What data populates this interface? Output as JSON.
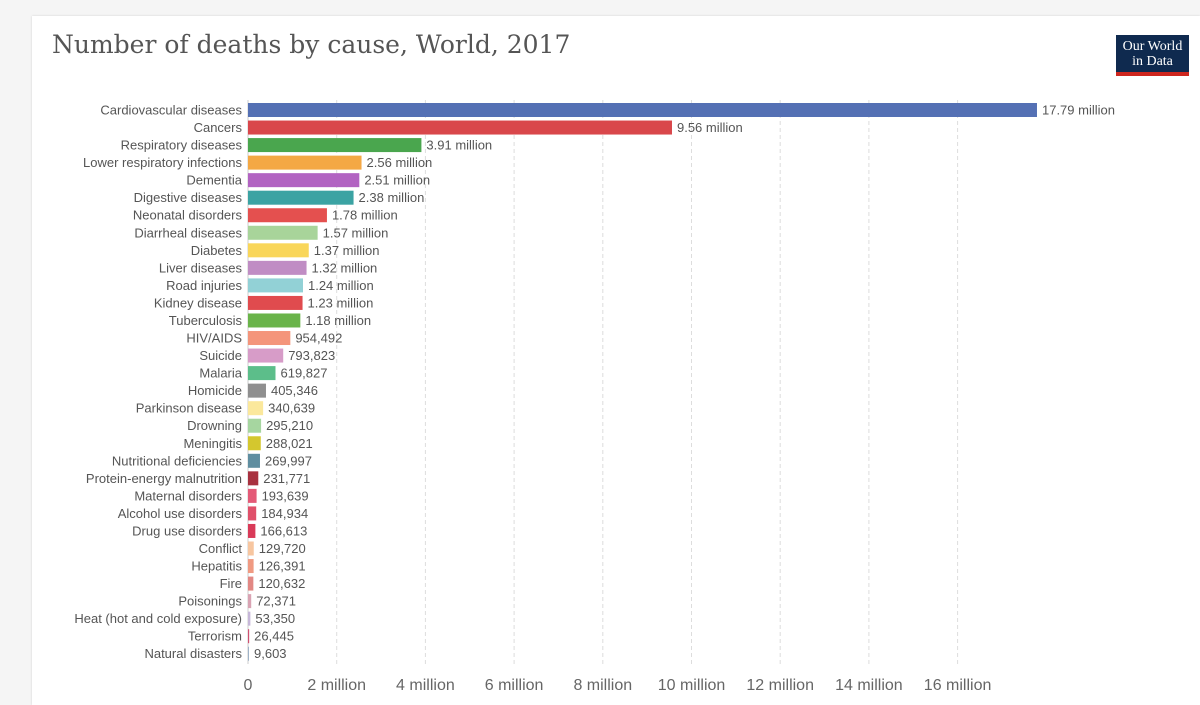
{
  "header": {
    "title": "Number of deaths by cause, World, 2017",
    "logo_line1": "Our World",
    "logo_line2": "in Data"
  },
  "colors": {
    "logo_bg": "#0f2a4f",
    "logo_accent": "#ce261e"
  },
  "chart_data": {
    "type": "bar",
    "orientation": "horizontal",
    "title": "Number of deaths by cause, World, 2017",
    "xlim": [
      0,
      17790000
    ],
    "grid": "vertical dashed",
    "ticks": [
      {
        "value": 0,
        "label": "0"
      },
      {
        "value": 2000000,
        "label": "2 million"
      },
      {
        "value": 4000000,
        "label": "4 million"
      },
      {
        "value": 6000000,
        "label": "6 million"
      },
      {
        "value": 8000000,
        "label": "8 million"
      },
      {
        "value": 10000000,
        "label": "10 million"
      },
      {
        "value": 12000000,
        "label": "12 million"
      },
      {
        "value": 14000000,
        "label": "14 million"
      },
      {
        "value": 16000000,
        "label": "16 million"
      }
    ],
    "bars": [
      {
        "category": "Cardiovascular diseases",
        "value": 17790000,
        "label": "17.79 million",
        "color": "#5470b4"
      },
      {
        "category": "Cancers",
        "value": 9560000,
        "label": "9.56 million",
        "color": "#d9474b"
      },
      {
        "category": "Respiratory diseases",
        "value": 3910000,
        "label": "3.91 million",
        "color": "#4aa64e"
      },
      {
        "category": "Lower respiratory infections",
        "value": 2560000,
        "label": "2.56 million",
        "color": "#f4a844"
      },
      {
        "category": "Dementia",
        "value": 2510000,
        "label": "2.51 million",
        "color": "#b263c2"
      },
      {
        "category": "Digestive diseases",
        "value": 2380000,
        "label": "2.38 million",
        "color": "#3ba3a3"
      },
      {
        "category": "Neonatal disorders",
        "value": 1780000,
        "label": "1.78 million",
        "color": "#e4504f"
      },
      {
        "category": "Diarrheal diseases",
        "value": 1570000,
        "label": "1.57 million",
        "color": "#a8d49a"
      },
      {
        "category": "Diabetes",
        "value": 1370000,
        "label": "1.37 million",
        "color": "#f9d65a"
      },
      {
        "category": "Liver diseases",
        "value": 1320000,
        "label": "1.32 million",
        "color": "#c08dc4"
      },
      {
        "category": "Road injuries",
        "value": 1240000,
        "label": "1.24 million",
        "color": "#92d1d6"
      },
      {
        "category": "Kidney disease",
        "value": 1230000,
        "label": "1.23 million",
        "color": "#e04b4e"
      },
      {
        "category": "Tuberculosis",
        "value": 1180000,
        "label": "1.18 million",
        "color": "#6ab44a"
      },
      {
        "category": "HIV/AIDS",
        "value": 954492,
        "label": "954,492",
        "color": "#f4957b"
      },
      {
        "category": "Suicide",
        "value": 793823,
        "label": "793,823",
        "color": "#d79cc8"
      },
      {
        "category": "Malaria",
        "value": 619827,
        "label": "619,827",
        "color": "#5cbe8a"
      },
      {
        "category": "Homicide",
        "value": 405346,
        "label": "405,346",
        "color": "#8f8f8f"
      },
      {
        "category": "Parkinson disease",
        "value": 340639,
        "label": "340,639",
        "color": "#fbe89c"
      },
      {
        "category": "Drowning",
        "value": 295210,
        "label": "295,210",
        "color": "#a6d6a0"
      },
      {
        "category": "Meningitis",
        "value": 288021,
        "label": "288,021",
        "color": "#d4c72e"
      },
      {
        "category": "Nutritional deficiencies",
        "value": 269997,
        "label": "269,997",
        "color": "#5f8ea0"
      },
      {
        "category": "Protein-energy malnutrition",
        "value": 231771,
        "label": "231,771",
        "color": "#a8313f"
      },
      {
        "category": "Maternal disorders",
        "value": 193639,
        "label": "193,639",
        "color": "#e45a77"
      },
      {
        "category": "Alcohol use disorders",
        "value": 184934,
        "label": "184,934",
        "color": "#e0506a"
      },
      {
        "category": "Drug use disorders",
        "value": 166613,
        "label": "166,613",
        "color": "#d93a58"
      },
      {
        "category": "Conflict",
        "value": 129720,
        "label": "129,720",
        "color": "#f7c6a0"
      },
      {
        "category": "Hepatitis",
        "value": 126391,
        "label": "126,391",
        "color": "#f09a82"
      },
      {
        "category": "Fire",
        "value": 120632,
        "label": "120,632",
        "color": "#e28884"
      },
      {
        "category": "Poisonings",
        "value": 72371,
        "label": "72,371",
        "color": "#d9a3b3"
      },
      {
        "category": "Heat (hot and cold exposure)",
        "value": 53350,
        "label": "53,350",
        "color": "#c7b7d9"
      },
      {
        "category": "Terrorism",
        "value": 26445,
        "label": "26,445",
        "color": "#d05070"
      },
      {
        "category": "Natural disasters",
        "value": 9603,
        "label": "9,603",
        "color": "#9fb3c8"
      }
    ]
  }
}
